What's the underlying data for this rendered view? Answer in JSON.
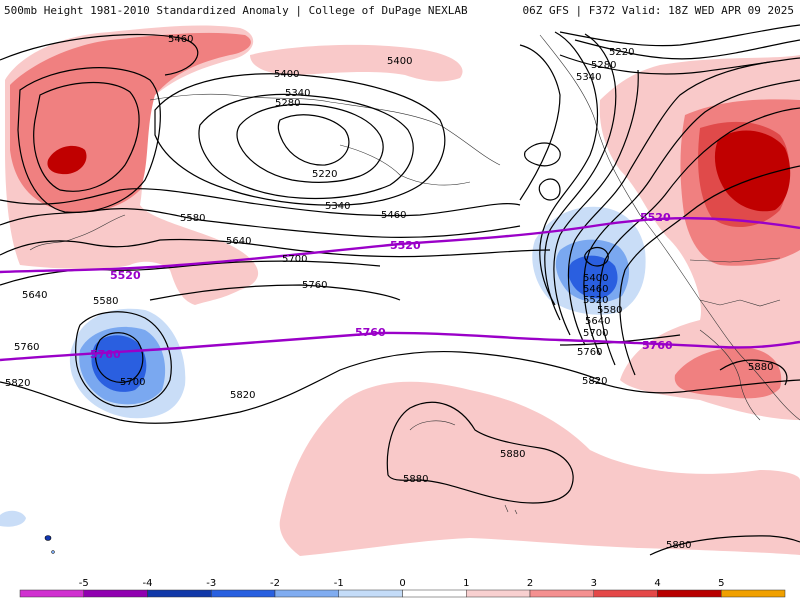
{
  "header": {
    "left": "500mb Height 1981-2010 Standardized Anomaly | College of DuPage NEXLAB",
    "right": "06Z GFS | F372 Valid: 18Z WED APR 09 2025"
  },
  "contour_labels": [
    "5460",
    "5400",
    "5340",
    "5280",
    "5220",
    "5340",
    "5400",
    "5460",
    "5580",
    "5640",
    "5700",
    "5760",
    "5820",
    "5880",
    "5880",
    "5880",
    "5640",
    "5580",
    "5700",
    "5820",
    "5760",
    "5220",
    "5280",
    "5340",
    "5400",
    "5460",
    "5520",
    "5580",
    "5640",
    "5700",
    "5760",
    "5820",
    "5880",
    "5400",
    "5700"
  ],
  "purple_labels": [
    "5520",
    "5520",
    "5520",
    "5760",
    "5760",
    "5760"
  ],
  "colorbar": {
    "ticks": [
      "-5",
      "-4",
      "-3",
      "-2",
      "-1",
      "0",
      "1",
      "2",
      "3",
      "4",
      "5"
    ],
    "colors": [
      "#d030d0",
      "#9000b0",
      "#1038a8",
      "#2860e0",
      "#80acf0",
      "#c4dcf8",
      "#ffffff",
      "#f8d0d0",
      "#f49090",
      "#e44848",
      "#b80000",
      "#f0a000"
    ]
  },
  "colors": {
    "pos1": "#f9c9c9",
    "pos2": "#f08080",
    "pos3": "#e04a4a",
    "pos4": "#c00000",
    "neg1": "#c9ddf7",
    "neg2": "#7aa8f0",
    "neg3": "#2a5fe0",
    "neg4": "#1236b0",
    "contour": "#000000",
    "thick": "#9a00c8"
  }
}
